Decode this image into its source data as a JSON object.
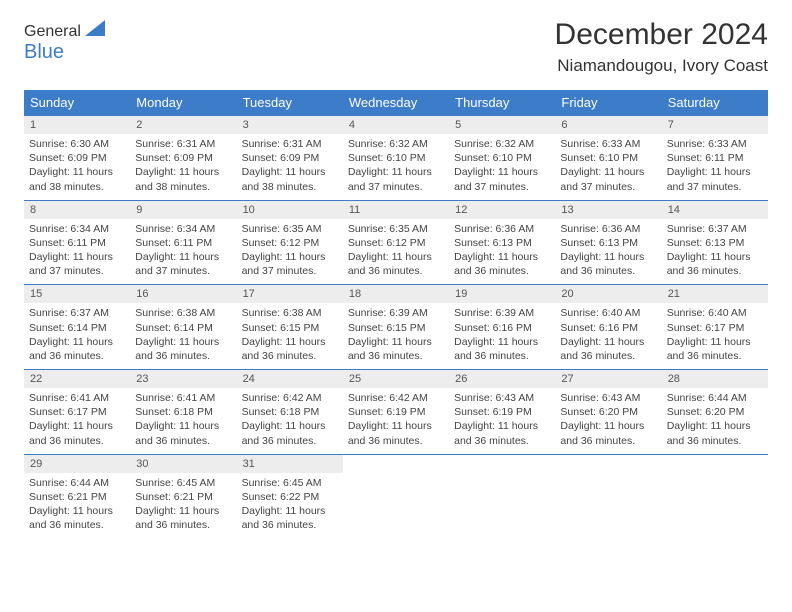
{
  "logo": {
    "text_top": "General",
    "text_bottom": "Blue"
  },
  "title": "December 2024",
  "location": "Niamandougou, Ivory Coast",
  "colors": {
    "header_bg": "#3d7cc9",
    "header_text": "#ffffff",
    "daynum_bg": "#ededed",
    "border": "#3d7cc9",
    "body_text": "#444444"
  },
  "day_names": [
    "Sunday",
    "Monday",
    "Tuesday",
    "Wednesday",
    "Thursday",
    "Friday",
    "Saturday"
  ],
  "weeks": [
    [
      {
        "n": "1",
        "sr": "Sunrise: 6:30 AM",
        "ss": "Sunset: 6:09 PM",
        "d1": "Daylight: 11 hours",
        "d2": "and 38 minutes."
      },
      {
        "n": "2",
        "sr": "Sunrise: 6:31 AM",
        "ss": "Sunset: 6:09 PM",
        "d1": "Daylight: 11 hours",
        "d2": "and 38 minutes."
      },
      {
        "n": "3",
        "sr": "Sunrise: 6:31 AM",
        "ss": "Sunset: 6:09 PM",
        "d1": "Daylight: 11 hours",
        "d2": "and 38 minutes."
      },
      {
        "n": "4",
        "sr": "Sunrise: 6:32 AM",
        "ss": "Sunset: 6:10 PM",
        "d1": "Daylight: 11 hours",
        "d2": "and 37 minutes."
      },
      {
        "n": "5",
        "sr": "Sunrise: 6:32 AM",
        "ss": "Sunset: 6:10 PM",
        "d1": "Daylight: 11 hours",
        "d2": "and 37 minutes."
      },
      {
        "n": "6",
        "sr": "Sunrise: 6:33 AM",
        "ss": "Sunset: 6:10 PM",
        "d1": "Daylight: 11 hours",
        "d2": "and 37 minutes."
      },
      {
        "n": "7",
        "sr": "Sunrise: 6:33 AM",
        "ss": "Sunset: 6:11 PM",
        "d1": "Daylight: 11 hours",
        "d2": "and 37 minutes."
      }
    ],
    [
      {
        "n": "8",
        "sr": "Sunrise: 6:34 AM",
        "ss": "Sunset: 6:11 PM",
        "d1": "Daylight: 11 hours",
        "d2": "and 37 minutes."
      },
      {
        "n": "9",
        "sr": "Sunrise: 6:34 AM",
        "ss": "Sunset: 6:11 PM",
        "d1": "Daylight: 11 hours",
        "d2": "and 37 minutes."
      },
      {
        "n": "10",
        "sr": "Sunrise: 6:35 AM",
        "ss": "Sunset: 6:12 PM",
        "d1": "Daylight: 11 hours",
        "d2": "and 37 minutes."
      },
      {
        "n": "11",
        "sr": "Sunrise: 6:35 AM",
        "ss": "Sunset: 6:12 PM",
        "d1": "Daylight: 11 hours",
        "d2": "and 36 minutes."
      },
      {
        "n": "12",
        "sr": "Sunrise: 6:36 AM",
        "ss": "Sunset: 6:13 PM",
        "d1": "Daylight: 11 hours",
        "d2": "and 36 minutes."
      },
      {
        "n": "13",
        "sr": "Sunrise: 6:36 AM",
        "ss": "Sunset: 6:13 PM",
        "d1": "Daylight: 11 hours",
        "d2": "and 36 minutes."
      },
      {
        "n": "14",
        "sr": "Sunrise: 6:37 AM",
        "ss": "Sunset: 6:13 PM",
        "d1": "Daylight: 11 hours",
        "d2": "and 36 minutes."
      }
    ],
    [
      {
        "n": "15",
        "sr": "Sunrise: 6:37 AM",
        "ss": "Sunset: 6:14 PM",
        "d1": "Daylight: 11 hours",
        "d2": "and 36 minutes."
      },
      {
        "n": "16",
        "sr": "Sunrise: 6:38 AM",
        "ss": "Sunset: 6:14 PM",
        "d1": "Daylight: 11 hours",
        "d2": "and 36 minutes."
      },
      {
        "n": "17",
        "sr": "Sunrise: 6:38 AM",
        "ss": "Sunset: 6:15 PM",
        "d1": "Daylight: 11 hours",
        "d2": "and 36 minutes."
      },
      {
        "n": "18",
        "sr": "Sunrise: 6:39 AM",
        "ss": "Sunset: 6:15 PM",
        "d1": "Daylight: 11 hours",
        "d2": "and 36 minutes."
      },
      {
        "n": "19",
        "sr": "Sunrise: 6:39 AM",
        "ss": "Sunset: 6:16 PM",
        "d1": "Daylight: 11 hours",
        "d2": "and 36 minutes."
      },
      {
        "n": "20",
        "sr": "Sunrise: 6:40 AM",
        "ss": "Sunset: 6:16 PM",
        "d1": "Daylight: 11 hours",
        "d2": "and 36 minutes."
      },
      {
        "n": "21",
        "sr": "Sunrise: 6:40 AM",
        "ss": "Sunset: 6:17 PM",
        "d1": "Daylight: 11 hours",
        "d2": "and 36 minutes."
      }
    ],
    [
      {
        "n": "22",
        "sr": "Sunrise: 6:41 AM",
        "ss": "Sunset: 6:17 PM",
        "d1": "Daylight: 11 hours",
        "d2": "and 36 minutes."
      },
      {
        "n": "23",
        "sr": "Sunrise: 6:41 AM",
        "ss": "Sunset: 6:18 PM",
        "d1": "Daylight: 11 hours",
        "d2": "and 36 minutes."
      },
      {
        "n": "24",
        "sr": "Sunrise: 6:42 AM",
        "ss": "Sunset: 6:18 PM",
        "d1": "Daylight: 11 hours",
        "d2": "and 36 minutes."
      },
      {
        "n": "25",
        "sr": "Sunrise: 6:42 AM",
        "ss": "Sunset: 6:19 PM",
        "d1": "Daylight: 11 hours",
        "d2": "and 36 minutes."
      },
      {
        "n": "26",
        "sr": "Sunrise: 6:43 AM",
        "ss": "Sunset: 6:19 PM",
        "d1": "Daylight: 11 hours",
        "d2": "and 36 minutes."
      },
      {
        "n": "27",
        "sr": "Sunrise: 6:43 AM",
        "ss": "Sunset: 6:20 PM",
        "d1": "Daylight: 11 hours",
        "d2": "and 36 minutes."
      },
      {
        "n": "28",
        "sr": "Sunrise: 6:44 AM",
        "ss": "Sunset: 6:20 PM",
        "d1": "Daylight: 11 hours",
        "d2": "and 36 minutes."
      }
    ],
    [
      {
        "n": "29",
        "sr": "Sunrise: 6:44 AM",
        "ss": "Sunset: 6:21 PM",
        "d1": "Daylight: 11 hours",
        "d2": "and 36 minutes."
      },
      {
        "n": "30",
        "sr": "Sunrise: 6:45 AM",
        "ss": "Sunset: 6:21 PM",
        "d1": "Daylight: 11 hours",
        "d2": "and 36 minutes."
      },
      {
        "n": "31",
        "sr": "Sunrise: 6:45 AM",
        "ss": "Sunset: 6:22 PM",
        "d1": "Daylight: 11 hours",
        "d2": "and 36 minutes."
      },
      null,
      null,
      null,
      null
    ]
  ]
}
